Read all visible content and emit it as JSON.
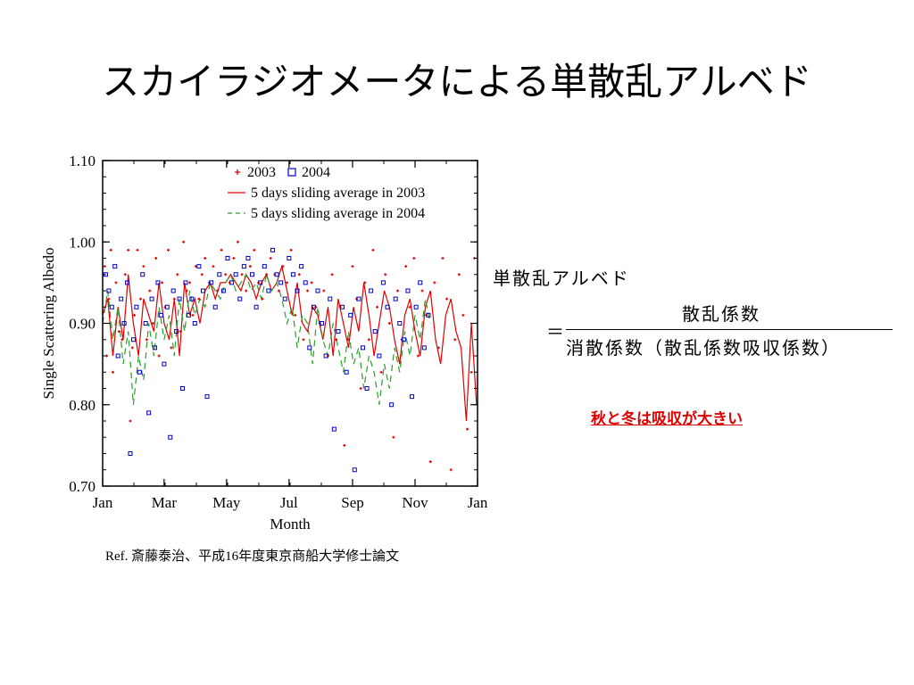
{
  "title": "スカイラジオメータによる単散乱アルベド",
  "reference": "Ref. 斎藤泰治、平成16年度東京商船大学修士論文",
  "formula": {
    "term": "単散乱アルベド",
    "equals": "＝",
    "numerator": "散乱係数",
    "denominator": "消散係数（散乱係数吸収係数）"
  },
  "note": "秋と冬は吸収が大きい",
  "colors": {
    "series_2003": "#e00000",
    "series_2004": "#0000cc",
    "series_2004_avg": "#2a9d2a",
    "note": "#e00000"
  },
  "chart_data": {
    "type": "scatter",
    "xlabel": "Month",
    "ylabel": "Single Scattering Albedo",
    "xlim": [
      0,
      366
    ],
    "ylim": [
      0.7,
      1.1
    ],
    "yticks": [
      0.7,
      0.8,
      0.9,
      1.0,
      1.1
    ],
    "ytick_labels": [
      "0.70",
      "0.80",
      "0.90",
      "1.00",
      "1.10"
    ],
    "xticks": [
      0,
      60,
      121,
      182,
      244,
      305,
      366
    ],
    "xtick_labels": [
      "Jan",
      "Mar",
      "May",
      "Jul",
      "Sep",
      "Nov",
      "Jan"
    ],
    "legend_position": "top-right",
    "series": [
      {
        "name": "2003",
        "type": "scatter",
        "marker": "plus",
        "color": "#e00000",
        "x": [
          2,
          4,
          6,
          8,
          10,
          13,
          16,
          19,
          22,
          25,
          27,
          29,
          31,
          34,
          37,
          40,
          43,
          46,
          49,
          52,
          55,
          58,
          61,
          64,
          67,
          70,
          73,
          76,
          79,
          82,
          85,
          88,
          91,
          94,
          97,
          100,
          104,
          108,
          112,
          116,
          120,
          124,
          128,
          132,
          136,
          140,
          144,
          148,
          152,
          156,
          160,
          164,
          168,
          172,
          176,
          180,
          184,
          188,
          192,
          196,
          200,
          204,
          208,
          212,
          216,
          220,
          224,
          228,
          232,
          236,
          240,
          244,
          248,
          252,
          256,
          260,
          264,
          268,
          272,
          276,
          280,
          284,
          288,
          292,
          296,
          300,
          304,
          308,
          312,
          316,
          320,
          324,
          328,
          332,
          336,
          340,
          344,
          348,
          352,
          356,
          360,
          363
        ],
        "y": [
          0.97,
          0.86,
          0.93,
          0.99,
          0.84,
          0.95,
          0.89,
          0.88,
          0.96,
          0.99,
          0.78,
          0.87,
          0.91,
          0.99,
          0.93,
          0.97,
          0.88,
          0.94,
          0.9,
          0.98,
          0.86,
          0.95,
          0.92,
          0.99,
          0.87,
          0.93,
          0.96,
          0.89,
          1.0,
          0.94,
          0.95,
          0.91,
          0.97,
          0.93,
          0.96,
          0.98,
          0.95,
          0.97,
          0.94,
          0.99,
          0.96,
          0.95,
          0.98,
          1.0,
          0.96,
          0.94,
          0.97,
          0.99,
          0.95,
          0.93,
          0.96,
          0.98,
          0.96,
          0.94,
          0.97,
          0.95,
          0.99,
          0.91,
          0.96,
          0.88,
          0.94,
          0.95,
          0.92,
          0.9,
          0.94,
          0.86,
          0.96,
          0.88,
          0.92,
          0.75,
          0.88,
          0.97,
          0.93,
          0.82,
          0.95,
          0.88,
          0.99,
          0.92,
          0.84,
          0.96,
          0.9,
          0.76,
          0.94,
          0.88,
          0.97,
          0.92,
          0.98,
          0.86,
          0.94,
          0.91,
          0.73,
          0.95,
          0.87,
          0.98,
          0.93,
          0.72,
          0.88,
          0.96,
          0.91,
          0.77,
          0.84,
          0.98
        ]
      },
      {
        "name": "2004",
        "type": "scatter",
        "marker": "square",
        "color": "#0000cc",
        "x": [
          3,
          6,
          9,
          12,
          15,
          18,
          21,
          24,
          27,
          30,
          33,
          36,
          39,
          42,
          45,
          48,
          51,
          54,
          57,
          60,
          63,
          66,
          69,
          72,
          75,
          78,
          81,
          84,
          87,
          90,
          94,
          98,
          102,
          106,
          110,
          114,
          118,
          122,
          126,
          130,
          134,
          138,
          142,
          146,
          150,
          154,
          158,
          162,
          166,
          170,
          174,
          178,
          182,
          186,
          190,
          194,
          198,
          202,
          206,
          210,
          214,
          218,
          222,
          226,
          230,
          234,
          238,
          242,
          246,
          250,
          254,
          258,
          262,
          266,
          270,
          274,
          278,
          282,
          286,
          290,
          294,
          298,
          302,
          306,
          310,
          314,
          318
        ],
        "y": [
          0.96,
          0.94,
          0.92,
          0.97,
          0.86,
          0.93,
          0.9,
          0.95,
          0.74,
          0.88,
          0.92,
          0.84,
          0.96,
          0.9,
          0.79,
          0.93,
          0.87,
          0.95,
          0.91,
          0.85,
          0.92,
          0.76,
          0.94,
          0.89,
          0.93,
          0.82,
          0.95,
          0.91,
          0.93,
          0.9,
          0.97,
          0.94,
          0.81,
          0.95,
          0.92,
          0.96,
          0.94,
          0.98,
          0.95,
          0.96,
          0.93,
          0.97,
          0.98,
          0.96,
          0.92,
          0.95,
          0.97,
          0.94,
          0.99,
          0.96,
          0.95,
          0.93,
          0.98,
          0.96,
          0.94,
          0.97,
          0.95,
          0.87,
          0.92,
          0.94,
          0.9,
          0.86,
          0.93,
          0.77,
          0.89,
          0.92,
          0.84,
          0.91,
          0.72,
          0.93,
          0.87,
          0.82,
          0.94,
          0.89,
          0.86,
          0.95,
          0.92,
          0.8,
          0.93,
          0.9,
          0.88,
          0.94,
          0.81,
          0.92,
          0.95,
          0.87,
          0.91
        ]
      },
      {
        "name": "5 days sliding average in 2003",
        "type": "line",
        "style": "solid",
        "color": "#e00000",
        "x": [
          0,
          5,
          10,
          15,
          20,
          25,
          30,
          35,
          40,
          45,
          50,
          55,
          60,
          65,
          70,
          75,
          80,
          85,
          90,
          95,
          100,
          105,
          110,
          115,
          120,
          125,
          130,
          135,
          140,
          145,
          150,
          155,
          160,
          165,
          170,
          175,
          180,
          185,
          190,
          195,
          200,
          205,
          210,
          215,
          220,
          225,
          230,
          235,
          240,
          245,
          250,
          255,
          260,
          265,
          270,
          275,
          280,
          285,
          290,
          295,
          300,
          305,
          310,
          315,
          320,
          325,
          330,
          335,
          340,
          345,
          350,
          355,
          360,
          365
        ],
        "y": [
          0.91,
          0.93,
          0.86,
          0.92,
          0.88,
          0.96,
          0.9,
          0.86,
          0.93,
          0.91,
          0.89,
          0.95,
          0.9,
          0.88,
          0.93,
          0.86,
          0.95,
          0.91,
          0.93,
          0.9,
          0.94,
          0.95,
          0.93,
          0.95,
          0.95,
          0.96,
          0.95,
          0.94,
          0.96,
          0.95,
          0.93,
          0.95,
          0.96,
          0.94,
          0.95,
          0.97,
          0.94,
          0.91,
          0.95,
          0.9,
          0.89,
          0.92,
          0.91,
          0.88,
          0.92,
          0.86,
          0.93,
          0.9,
          0.87,
          0.92,
          0.89,
          0.95,
          0.91,
          0.86,
          0.9,
          0.94,
          0.92,
          0.88,
          0.85,
          0.91,
          0.93,
          0.89,
          0.86,
          0.92,
          0.94,
          0.88,
          0.85,
          0.91,
          0.93,
          0.89,
          0.87,
          0.78,
          0.9,
          0.8
        ]
      },
      {
        "name": "5 days sliding average in 2004",
        "type": "line",
        "style": "dashed",
        "color": "#2a9d2a",
        "x": [
          0,
          5,
          10,
          15,
          20,
          25,
          30,
          35,
          40,
          45,
          50,
          55,
          60,
          65,
          70,
          75,
          80,
          85,
          90,
          95,
          100,
          105,
          110,
          115,
          120,
          125,
          130,
          135,
          140,
          145,
          150,
          155,
          160,
          165,
          170,
          175,
          180,
          185,
          190,
          195,
          200,
          205,
          210,
          215,
          220,
          225,
          230,
          235,
          240,
          245,
          250,
          255,
          260,
          265,
          270,
          275,
          280,
          285,
          290,
          295,
          300,
          305,
          310,
          315,
          320
        ],
        "y": [
          0.9,
          0.94,
          0.88,
          0.92,
          0.85,
          0.89,
          0.8,
          0.86,
          0.83,
          0.9,
          0.86,
          0.92,
          0.88,
          0.91,
          0.86,
          0.93,
          0.89,
          0.94,
          0.91,
          0.93,
          0.92,
          0.95,
          0.94,
          0.93,
          0.95,
          0.96,
          0.94,
          0.95,
          0.96,
          0.94,
          0.95,
          0.93,
          0.96,
          0.94,
          0.95,
          0.93,
          0.9,
          0.92,
          0.87,
          0.91,
          0.9,
          0.85,
          0.92,
          0.88,
          0.86,
          0.9,
          0.87,
          0.84,
          0.89,
          0.85,
          0.87,
          0.82,
          0.86,
          0.84,
          0.8,
          0.85,
          0.82,
          0.87,
          0.84,
          0.89,
          0.86,
          0.91,
          0.88,
          0.93,
          0.9
        ]
      }
    ]
  }
}
